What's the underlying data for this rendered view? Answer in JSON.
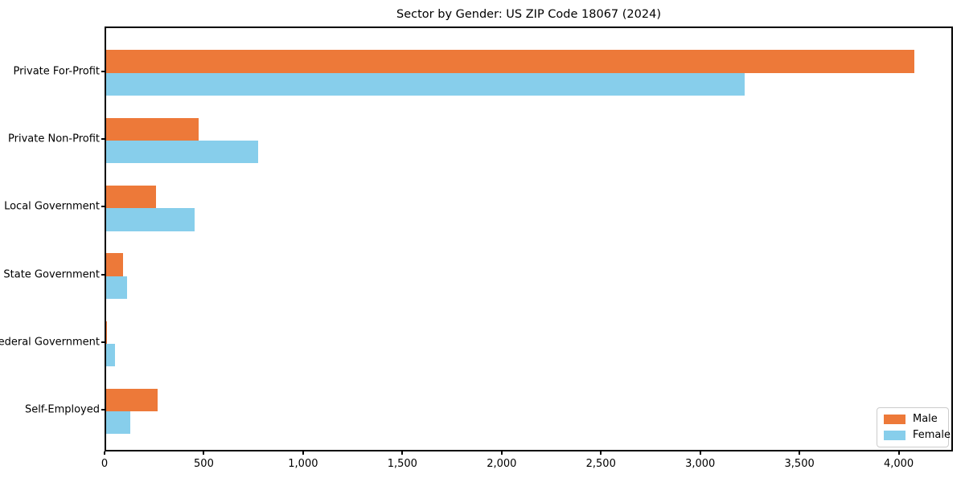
{
  "chart_data": {
    "type": "bar",
    "orientation": "horizontal",
    "title": "Sector by Gender: US ZIP Code 18067 (2024)",
    "categories": [
      "Private For-Profit",
      "Private Non-Profit",
      "Local Government",
      "State Government",
      "Federal Government",
      "Self-Employed"
    ],
    "series": [
      {
        "name": "Male",
        "color": "#ED7939",
        "values": [
          4070,
          465,
          250,
          85,
          5,
          260
        ]
      },
      {
        "name": "Female",
        "color": "#87CEEB",
        "values": [
          3215,
          765,
          445,
          105,
          45,
          120
        ]
      }
    ],
    "xlabel": "",
    "ylabel": "",
    "xlim": [
      0,
      4273
    ],
    "x_ticks": [
      0,
      500,
      1000,
      1500,
      2000,
      2500,
      3000,
      3500,
      4000
    ],
    "x_tick_labels": [
      "0",
      "500",
      "1,000",
      "1,500",
      "2,000",
      "2,500",
      "3,000",
      "3,500",
      "4,000"
    ],
    "grid": false,
    "legend_position": "lower right",
    "text_color": "#000000",
    "spine_color": "#000000",
    "background_color": "#ffffff"
  }
}
